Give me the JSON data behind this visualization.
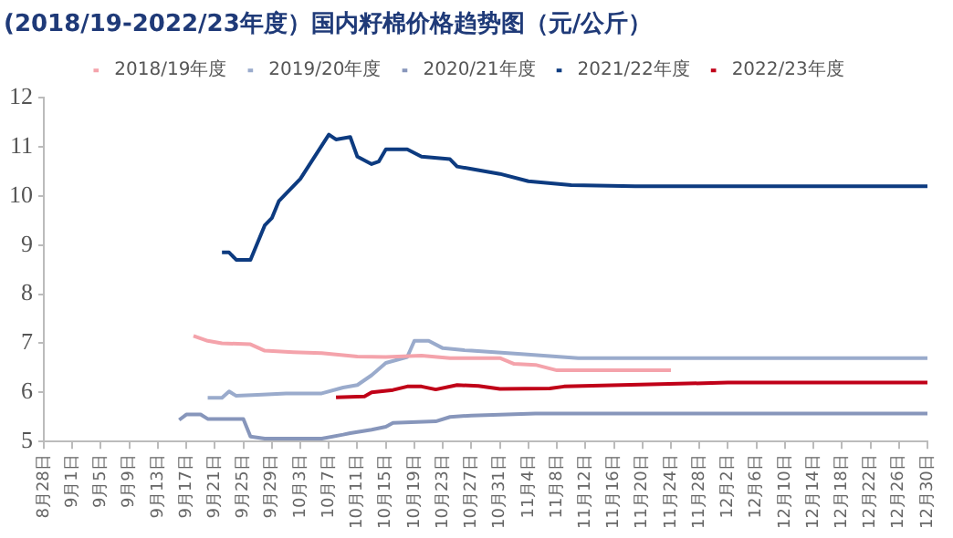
{
  "chart_data": {
    "type": "line",
    "title": "(2018/19-2022/23年度）国内籽棉价格趋势图（元/公斤）",
    "xlim": [
      "--08-28",
      "--12-30"
    ],
    "xticks": [
      {
        "value": "--08-28",
        "label": "8月28日"
      },
      {
        "value": "--09-01",
        "label": "9月1日"
      },
      {
        "value": "--09-05",
        "label": "9月5日"
      },
      {
        "value": "--09-09",
        "label": "9月9日"
      },
      {
        "value": "--09-13",
        "label": "9月13日"
      },
      {
        "value": "--09-17",
        "label": "9月17日"
      },
      {
        "value": "--09-21",
        "label": "9月21日"
      },
      {
        "value": "--09-25",
        "label": "9月25日"
      },
      {
        "value": "--09-29",
        "label": "9月29日"
      },
      {
        "value": "--10-03",
        "label": "10月3日"
      },
      {
        "value": "--10-07",
        "label": "10月7日"
      },
      {
        "value": "--10-11",
        "label": "10月11日"
      },
      {
        "value": "--10-15",
        "label": "10月15日"
      },
      {
        "value": "--10-19",
        "label": "10月19日"
      },
      {
        "value": "--10-23",
        "label": "10月23日"
      },
      {
        "value": "--10-27",
        "label": "10月27日"
      },
      {
        "value": "--10-31",
        "label": "10月31日"
      },
      {
        "value": "--11-04",
        "label": "11月4日"
      },
      {
        "value": "--11-08",
        "label": "11月8日"
      },
      {
        "value": "--11-12",
        "label": "11月12日"
      },
      {
        "value": "--11-16",
        "label": "11月16日"
      },
      {
        "value": "--11-20",
        "label": "11月20日"
      },
      {
        "value": "--11-24",
        "label": "11月24日"
      },
      {
        "value": "--11-28",
        "label": "11月28日"
      },
      {
        "value": "--12-02",
        "label": "12月2日"
      },
      {
        "value": "--12-06",
        "label": "12月6日"
      },
      {
        "value": "--12-10",
        "label": "12月10日"
      },
      {
        "value": "--12-14",
        "label": "12月14日"
      },
      {
        "value": "--12-18",
        "label": "12月18日"
      },
      {
        "value": "--12-22",
        "label": "12月22日"
      },
      {
        "value": "--12-26",
        "label": "12月26日"
      },
      {
        "value": "--12-30",
        "label": "12月30日"
      }
    ],
    "ylim": [
      5,
      12
    ],
    "yticks": [
      5,
      6,
      7,
      8,
      9,
      10,
      11,
      12
    ],
    "grid": false,
    "legend": "top",
    "marker": "none",
    "line_style": "solid",
    "series": [
      {
        "name": "2018/19年度",
        "color": "#f4a3ab",
        "x": [
          "--09-18",
          "--09-20",
          "--09-22",
          "--09-26",
          "--09-28",
          "--10-02",
          "--10-06",
          "--10-11",
          "--10-15",
          "--10-20",
          "--10-24",
          "--10-31",
          "--11-02",
          "--11-05",
          "--11-08",
          "--11-24"
        ],
        "values": [
          7.15,
          7.05,
          7.0,
          6.98,
          6.85,
          6.82,
          6.8,
          6.73,
          6.72,
          6.75,
          6.7,
          6.7,
          6.58,
          6.56,
          6.45,
          6.45
        ]
      },
      {
        "name": "2019/20年度",
        "color": "#9aabcc",
        "x": [
          "--09-20",
          "--09-22",
          "--09-23",
          "--09-24",
          "--09-27",
          "--10-01",
          "--10-06",
          "--10-09",
          "--10-11",
          "--10-13",
          "--10-15",
          "--10-18",
          "--10-19",
          "--10-21",
          "--10-23",
          "--10-26",
          "--10-27",
          "--11-03",
          "--11-11",
          "--12-30"
        ],
        "values": [
          5.89,
          5.89,
          6.02,
          5.93,
          5.95,
          5.98,
          5.98,
          6.1,
          6.15,
          6.35,
          6.6,
          6.72,
          7.05,
          7.05,
          6.9,
          6.86,
          6.85,
          6.78,
          6.7,
          6.7
        ]
      },
      {
        "name": "2020/21年度",
        "color": "#8796bb",
        "x": [
          "--09-16",
          "--09-17",
          "--09-19",
          "--09-20",
          "--09-25",
          "--09-26",
          "--09-28",
          "--10-06",
          "--10-09",
          "--10-10",
          "--10-13",
          "--10-15",
          "--10-16",
          "--10-22",
          "--10-24",
          "--10-27",
          "--11-05",
          "--12-30"
        ],
        "values": [
          5.44,
          5.55,
          5.55,
          5.46,
          5.46,
          5.1,
          5.06,
          5.06,
          5.14,
          5.17,
          5.24,
          5.3,
          5.38,
          5.41,
          5.5,
          5.53,
          5.57,
          5.57
        ]
      },
      {
        "name": "2021/22年度",
        "color": "#0d3b80",
        "x": [
          "--09-22",
          "--09-23",
          "--09-24",
          "--09-26",
          "--09-28",
          "--09-29",
          "--09-30",
          "--10-03",
          "--10-07",
          "--10-08",
          "--10-10",
          "--10-11",
          "--10-13",
          "--10-14",
          "--10-15",
          "--10-18",
          "--10-20",
          "--10-24",
          "--10-25",
          "--10-27",
          "--10-31",
          "--11-04",
          "--11-10",
          "--11-19",
          "--12-30"
        ],
        "values": [
          8.85,
          8.85,
          8.7,
          8.7,
          9.4,
          9.55,
          9.9,
          10.35,
          11.25,
          11.15,
          11.2,
          10.8,
          10.65,
          10.7,
          10.95,
          10.95,
          10.8,
          10.75,
          10.6,
          10.55,
          10.45,
          10.3,
          10.22,
          10.2,
          10.2
        ]
      },
      {
        "name": "2022/23年度",
        "color": "#c00018",
        "x": [
          "--10-08",
          "--10-12",
          "--10-13",
          "--10-16",
          "--10-18",
          "--10-20",
          "--10-22",
          "--10-25",
          "--10-28",
          "--10-31",
          "--11-07",
          "--11-09",
          "--11-17",
          "--12-02",
          "--12-30"
        ],
        "values": [
          5.9,
          5.92,
          6.0,
          6.05,
          6.12,
          6.12,
          6.06,
          6.15,
          6.13,
          6.07,
          6.08,
          6.12,
          6.15,
          6.2,
          6.2
        ]
      }
    ]
  }
}
